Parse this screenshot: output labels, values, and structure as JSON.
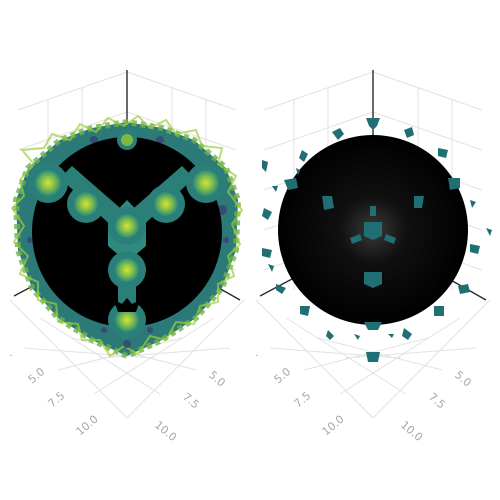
{
  "colors": {
    "background": "#ffffff",
    "grid": "#e2e2e2",
    "axis": "#2b2b2b",
    "sphere_core": "#000000",
    "teal": "#1f6f73",
    "teal_light": "#2f8f88",
    "green": "#5fa84a",
    "yellow_green": "#c6dd36",
    "purple": "#39426e"
  },
  "panels": [
    {
      "name": "left-panel",
      "x_ticks": [
        "5.0",
        "7.5",
        "10.0"
      ],
      "y_ticks": [
        "5.0",
        "7.5",
        "10.0"
      ]
    },
    {
      "name": "right-panel",
      "x_ticks": [
        "5.0",
        "7.5",
        "10.0"
      ],
      "y_ticks": [
        "5.0",
        "7.5",
        "10.0"
      ]
    }
  ]
}
